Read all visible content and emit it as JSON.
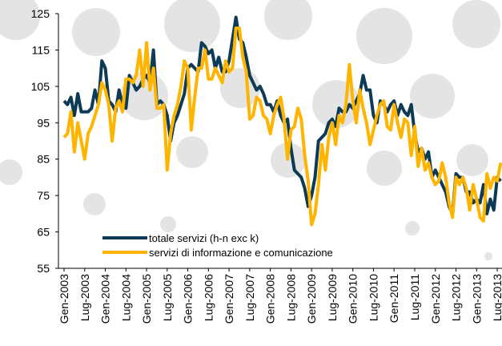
{
  "chart_data": {
    "type": "line",
    "categories": [
      "Gen-2003",
      null,
      null,
      null,
      null,
      null,
      "Lug-2003",
      null,
      null,
      null,
      null,
      null,
      "Gen-2004",
      null,
      null,
      null,
      null,
      null,
      "Lug-2004",
      null,
      null,
      null,
      null,
      null,
      "Gen-2005",
      null,
      null,
      null,
      null,
      null,
      "Lug-2005",
      null,
      null,
      null,
      null,
      null,
      "Gen-2006",
      null,
      null,
      null,
      null,
      null,
      "Lug-2006",
      null,
      null,
      null,
      null,
      null,
      "Gen-2007",
      null,
      null,
      null,
      null,
      null,
      "Lug-2007",
      null,
      null,
      null,
      null,
      null,
      "Gen-2008",
      null,
      null,
      null,
      null,
      null,
      "Lug-2008",
      null,
      null,
      null,
      null,
      null,
      "Gen-2009",
      null,
      null,
      null,
      null,
      null,
      "Lug-2009",
      null,
      null,
      null,
      null,
      null,
      "Gen-2010",
      null,
      null,
      null,
      null,
      null,
      "Lug-2010",
      null,
      null,
      null,
      null,
      null,
      "Gen-2011",
      null,
      null,
      null,
      null,
      null,
      "Lug-2011",
      null,
      null,
      null,
      null,
      null,
      "Gen-2012",
      null,
      null,
      null,
      null,
      null,
      "Lug-2012",
      null,
      null,
      null,
      null,
      null,
      "Gen-2013",
      null,
      null,
      null,
      null,
      null,
      "Lug-2013",
      null
    ],
    "series": [
      {
        "name": "totale servizi (h-n exc k)",
        "color": "#0d3b55",
        "values": [
          101,
          100,
          102,
          97,
          103,
          98,
          98,
          98,
          99,
          104,
          100,
          112,
          110,
          101,
          100,
          98,
          104,
          100,
          99,
          108,
          106,
          104,
          105,
          107,
          108,
          106,
          115,
          100,
          101,
          100,
          97,
          90,
          95,
          97,
          100,
          103,
          110,
          111,
          110,
          109,
          117,
          116,
          114,
          115,
          110,
          113,
          109,
          109,
          112,
          118,
          124,
          118,
          117,
          113,
          108,
          106,
          104,
          105,
          103,
          100,
          100,
          98,
          101,
          97,
          95,
          96,
          88,
          82,
          81,
          80,
          77,
          72,
          75,
          80,
          90,
          91,
          92,
          95,
          96,
          94,
          99,
          98,
          98,
          100,
          99,
          101,
          103,
          108,
          104,
          104,
          97,
          95,
          101,
          100,
          98,
          100,
          101,
          97,
          100,
          98,
          97,
          100,
          92,
          87,
          88,
          85,
          87,
          80,
          82,
          80,
          78,
          76,
          72,
          70,
          81,
          80,
          80,
          76,
          76,
          73,
          74,
          73,
          78,
          70,
          74,
          71,
          80,
          79
        ]
      },
      {
        "name": "servizi di informazione e comunicazione",
        "color": "#ffb400",
        "values": [
          91,
          92,
          98,
          87,
          95,
          90,
          85,
          92,
          94,
          97,
          100,
          106,
          104,
          100,
          90,
          99,
          101,
          98,
          107,
          107,
          106,
          108,
          115,
          105,
          117,
          104,
          110,
          99,
          99,
          100,
          82,
          92,
          97,
          100,
          105,
          112,
          110,
          93,
          102,
          110,
          110,
          115,
          107,
          107,
          110,
          108,
          106,
          112,
          109,
          110,
          121,
          121,
          113,
          109,
          96,
          97,
          102,
          101,
          97,
          96,
          92,
          97,
          100,
          102,
          96,
          85,
          93,
          94,
          99,
          96,
          86,
          79,
          67,
          70,
          78,
          89,
          82,
          91,
          95,
          89,
          97,
          95,
          100,
          111,
          101,
          95,
          104,
          99,
          95,
          89,
          93,
          97,
          100,
          101,
          94,
          93,
          100,
          95,
          91,
          96,
          95,
          86,
          94,
          83,
          88,
          82,
          84,
          80,
          78,
          79,
          84,
          80,
          73,
          69,
          80,
          78,
          80,
          77,
          71,
          78,
          74,
          69,
          68,
          81,
          77,
          80,
          79,
          84
        ]
      }
    ],
    "ylim": [
      55,
      125
    ],
    "yticks": [
      55,
      65,
      75,
      85,
      95,
      105,
      115,
      125
    ],
    "grid": false,
    "legend": "lower-left"
  }
}
